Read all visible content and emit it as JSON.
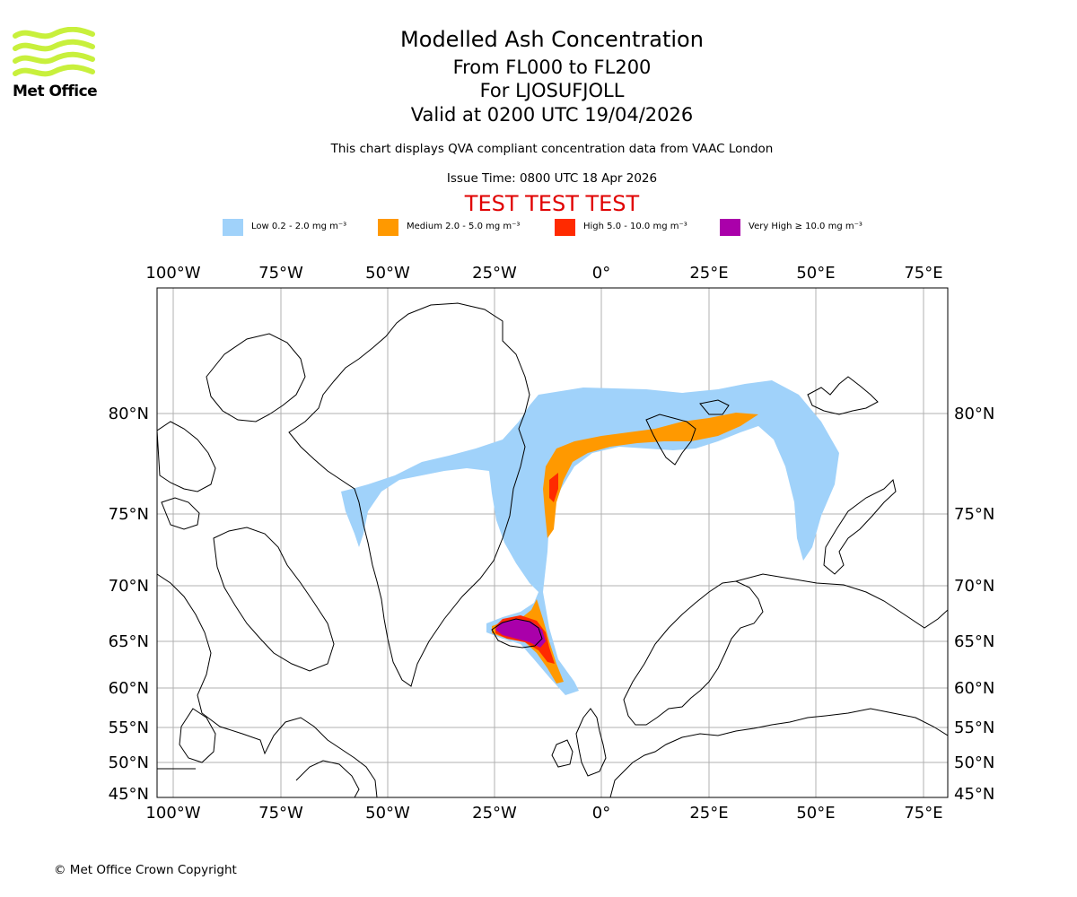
{
  "logo": {
    "text": "Met Office",
    "color": "#c8f03c"
  },
  "titles": {
    "main": "Modelled Ash Concentration",
    "levels": "From FL000 to FL200",
    "volcano": "For LJOSUFJOLL",
    "valid": "Valid at 0200 UTC 19/04/2026",
    "note": "This chart displays QVA compliant concentration data from VAAC London",
    "issue": "Issue Time: 0800 UTC 18 Apr 2026",
    "test": "TEST TEST TEST"
  },
  "legend": [
    {
      "label": "Low 0.2 - 2.0 mg m⁻³",
      "color": "#a0d2fa"
    },
    {
      "label": "Medium 2.0 - 5.0 mg m⁻³",
      "color": "#ff9900"
    },
    {
      "label": "High 5.0 - 10.0 mg m⁻³",
      "color": "#ff2a00"
    },
    {
      "label": "Very High  ≥  10.0 mg m⁻³",
      "color": "#aa00aa"
    }
  ],
  "map": {
    "lon_labels": [
      "100°W",
      "75°W",
      "50°W",
      "25°W",
      "0°",
      "25°E",
      "50°E",
      "75°E"
    ],
    "lat_labels": [
      "80°N",
      "75°N",
      "70°N",
      "65°N",
      "60°N",
      "55°N",
      "50°N",
      "45°N"
    ],
    "gridlines": true
  },
  "copyright": "© Met Office Crown Copyright"
}
